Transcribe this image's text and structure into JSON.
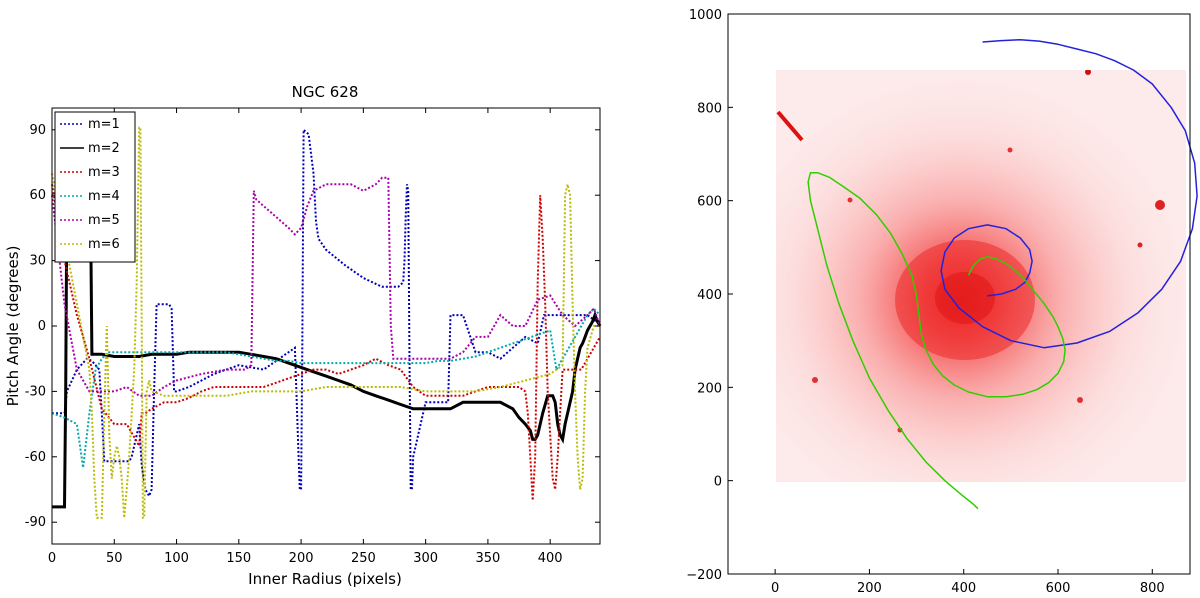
{
  "chart_data": [
    {
      "type": "line",
      "title": "NGC 628",
      "xlabel": "Inner Radius (pixels)",
      "ylabel": "Pitch Angle (degrees)",
      "xlim": [
        0,
        440
      ],
      "ylim": [
        -100,
        100
      ],
      "xticks": [
        "0",
        "50",
        "100",
        "150",
        "200",
        "250",
        "300",
        "350",
        "400"
      ],
      "yticks": [
        "90",
        "60",
        "30",
        "0",
        "-30",
        "-60",
        "-90"
      ],
      "grid": false,
      "legend_position": "top-left",
      "series": [
        {
          "name": "m=1",
          "color": "#0000bb",
          "style": "dotted",
          "x": [
            0,
            10,
            12,
            20,
            28,
            32,
            38,
            40,
            42,
            60,
            62,
            64,
            70,
            72,
            75,
            78,
            80,
            82,
            84,
            88,
            92,
            94,
            96,
            98,
            100,
            110,
            130,
            150,
            170,
            185,
            195,
            198,
            199,
            200,
            201,
            202,
            206,
            210,
            212,
            214,
            220,
            235,
            250,
            265,
            278,
            282,
            283,
            284,
            285,
            286,
            287,
            288,
            289,
            290,
            300,
            310,
            318,
            320,
            325,
            330,
            340,
            350,
            360,
            370,
            380,
            390,
            395,
            400,
            405,
            410,
            415,
            420,
            430,
            437,
            440
          ],
          "y": [
            -40,
            -40,
            -30,
            -20,
            -15,
            -16,
            -20,
            -40,
            -62,
            -62,
            -62,
            -60,
            -45,
            -64,
            -75,
            -78,
            -75,
            -30,
            10,
            10,
            10,
            10,
            8,
            -30,
            -30,
            -28,
            -22,
            -18,
            -20,
            -14,
            -10,
            -60,
            -75,
            -75,
            -10,
            90,
            88,
            70,
            48,
            40,
            35,
            28,
            22,
            18,
            18,
            20,
            30,
            50,
            65,
            62,
            -10,
            -75,
            -75,
            -60,
            -35,
            -35,
            -35,
            5,
            5,
            5,
            -12,
            -12,
            -15,
            -10,
            -5,
            -8,
            5,
            5,
            5,
            5,
            5,
            5,
            5,
            2,
            2
          ]
        },
        {
          "name": "m=2",
          "color": "#000000",
          "style": "solid",
          "x": [
            0,
            10,
            11,
            12,
            14,
            16,
            20,
            24,
            28,
            30,
            31,
            32,
            34,
            40,
            50,
            60,
            70,
            80,
            90,
            100,
            110,
            120,
            130,
            140,
            150,
            160,
            170,
            180,
            190,
            200,
            210,
            220,
            230,
            240,
            250,
            260,
            270,
            280,
            290,
            300,
            310,
            320,
            330,
            340,
            350,
            360,
            370,
            375,
            380,
            384,
            386,
            388,
            390,
            392,
            394,
            398,
            400,
            402,
            404,
            406,
            408,
            410,
            412,
            414,
            416,
            418,
            420,
            422,
            424,
            426,
            428,
            430,
            432,
            434,
            436,
            438,
            440
          ],
          "y": [
            -83,
            -83,
            -30,
            60,
            80,
            60,
            50,
            55,
            60,
            60,
            50,
            -13,
            -13,
            -13,
            -14,
            -14,
            -14,
            -13,
            -13,
            -13,
            -12,
            -12,
            -12,
            -12,
            -12,
            -13,
            -14,
            -15,
            -17,
            -19,
            -21,
            -23,
            -25,
            -27,
            -30,
            -32,
            -34,
            -36,
            -38,
            -38,
            -38,
            -38,
            -35,
            -35,
            -35,
            -35,
            -38,
            -42,
            -45,
            -48,
            -52,
            -52,
            -50,
            -45,
            -40,
            -32,
            -32,
            -32,
            -35,
            -45,
            -50,
            -52,
            -45,
            -40,
            -35,
            -30,
            -20,
            -15,
            -10,
            -8,
            -5,
            -2,
            0,
            2,
            5,
            2,
            0
          ]
        },
        {
          "name": "m=3",
          "color": "#cc0000",
          "style": "dotted",
          "x": [
            0,
            10,
            20,
            30,
            40,
            50,
            60,
            65,
            70,
            72,
            75,
            80,
            90,
            100,
            110,
            120,
            130,
            140,
            150,
            160,
            170,
            180,
            190,
            200,
            210,
            220,
            230,
            240,
            250,
            260,
            270,
            280,
            290,
            300,
            310,
            320,
            330,
            340,
            350,
            360,
            370,
            375,
            380,
            382,
            384,
            386,
            388,
            390,
            392,
            394,
            396,
            398,
            400,
            402,
            404,
            406,
            408,
            410,
            412,
            414,
            416,
            418,
            420,
            425,
            430,
            435,
            440
          ],
          "y": [
            65,
            30,
            5,
            -15,
            -38,
            -45,
            -45,
            -50,
            -55,
            -40,
            -40,
            -38,
            -35,
            -35,
            -33,
            -30,
            -28,
            -28,
            -28,
            -28,
            -28,
            -26,
            -24,
            -22,
            -20,
            -20,
            -22,
            -20,
            -18,
            -15,
            -18,
            -20,
            -28,
            -32,
            -32,
            -32,
            -32,
            -30,
            -28,
            -28,
            -28,
            -28,
            -30,
            -40,
            -60,
            -80,
            -60,
            20,
            60,
            40,
            10,
            -30,
            -50,
            -70,
            -75,
            -60,
            -40,
            -20,
            -20,
            -20,
            -20,
            -20,
            -20,
            -20,
            -15,
            -10,
            -5
          ]
        },
        {
          "name": "m=4",
          "color": "#00aaaa",
          "style": "dotted",
          "x": [
            0,
            10,
            20,
            25,
            30,
            35,
            40,
            45,
            50,
            60,
            70,
            80,
            90,
            100,
            110,
            120,
            130,
            140,
            150,
            160,
            170,
            180,
            190,
            200,
            210,
            220,
            230,
            240,
            250,
            260,
            270,
            280,
            290,
            300,
            310,
            320,
            330,
            340,
            350,
            360,
            370,
            380,
            390,
            400,
            405,
            410,
            415,
            420,
            425,
            430,
            435,
            440
          ],
          "y": [
            -40,
            -42,
            -45,
            -65,
            -40,
            -20,
            -15,
            -12,
            -12,
            -12,
            -12,
            -12,
            -12,
            -12,
            -12,
            -12,
            -12,
            -12,
            -13,
            -14,
            -15,
            -16,
            -16,
            -17,
            -17,
            -17,
            -17,
            -17,
            -17,
            -17,
            -17,
            -17,
            -17,
            -17,
            -16,
            -16,
            -15,
            -14,
            -12,
            -10,
            -8,
            -6,
            -4,
            -2,
            -20,
            -15,
            -10,
            -5,
            0,
            5,
            8,
            5
          ]
        },
        {
          "name": "m=5",
          "color": "#aa00aa",
          "style": "dotted",
          "x": [
            0,
            10,
            20,
            30,
            40,
            50,
            60,
            70,
            80,
            90,
            100,
            120,
            140,
            150,
            155,
            160,
            162,
            164,
            170,
            180,
            190,
            195,
            200,
            205,
            210,
            220,
            230,
            240,
            250,
            260,
            265,
            270,
            272,
            274,
            280,
            290,
            300,
            310,
            320,
            330,
            340,
            350,
            360,
            370,
            380,
            390,
            400,
            410,
            420,
            430,
            435,
            440
          ],
          "y": [
            60,
            10,
            -20,
            -30,
            -30,
            -30,
            -28,
            -32,
            -32,
            -28,
            -25,
            -22,
            -20,
            -20,
            -20,
            -18,
            62,
            58,
            55,
            50,
            45,
            42,
            45,
            55,
            62,
            65,
            65,
            65,
            62,
            65,
            68,
            68,
            0,
            -15,
            -15,
            -15,
            -15,
            -15,
            -15,
            -12,
            -5,
            -5,
            5,
            0,
            0,
            12,
            14,
            5,
            0,
            5,
            8,
            0
          ]
        },
        {
          "name": "m=6",
          "color": "#bbbb00",
          "style": "dotted",
          "x": [
            0,
            10,
            20,
            30,
            32,
            34,
            36,
            38,
            40,
            42,
            44,
            46,
            48,
            50,
            52,
            54,
            56,
            58,
            60,
            62,
            64,
            66,
            68,
            70,
            71,
            72,
            73,
            74,
            75,
            76,
            78,
            80,
            90,
            100,
            120,
            140,
            160,
            180,
            200,
            220,
            240,
            260,
            280,
            300,
            320,
            340,
            360,
            380,
            400,
            405,
            410,
            412,
            414,
            416,
            418,
            420,
            422,
            424,
            426,
            428,
            430,
            435,
            440
          ],
          "y": [
            70,
            40,
            10,
            -20,
            -40,
            -70,
            -88,
            -88,
            -88,
            -40,
            0,
            -50,
            -70,
            -60,
            -55,
            -60,
            -70,
            -88,
            -75,
            -60,
            -40,
            -20,
            20,
            91,
            91,
            0,
            -88,
            -88,
            -60,
            -30,
            -25,
            -30,
            -32,
            -32,
            -32,
            -32,
            -30,
            -30,
            -30,
            -28,
            -28,
            -28,
            -28,
            -30,
            -30,
            -30,
            -28,
            -25,
            -22,
            -20,
            -18,
            60,
            65,
            60,
            10,
            -30,
            -60,
            -75,
            -70,
            -30,
            -10,
            0,
            0
          ]
        }
      ]
    },
    {
      "type": "line",
      "title": "",
      "xlim": [
        -100,
        880
      ],
      "ylim": [
        -200,
        1000
      ],
      "xticks": [
        "0",
        "200",
        "400",
        "600",
        "800"
      ],
      "yticks": [
        "1000",
        "800",
        "600",
        "400",
        "200",
        "0",
        "−200"
      ],
      "background_image": "NGC 628 galaxy (red colormap)",
      "series": [
        {
          "name": "",
          "color": "#2222dd",
          "style": "solid",
          "x": [
            450,
            480,
            510,
            530,
            540,
            545,
            540,
            520,
            490,
            450,
            410,
            380,
            360,
            352,
            360,
            390,
            440,
            500,
            570,
            640,
            710,
            770,
            820,
            860,
            885,
            895,
            890,
            870,
            840,
            800,
            760,
            720,
            680,
            640,
            600,
            560,
            520,
            480,
            440
          ],
          "y": [
            396,
            400,
            410,
            425,
            445,
            470,
            495,
            520,
            540,
            548,
            540,
            520,
            490,
            450,
            410,
            370,
            330,
            300,
            285,
            295,
            320,
            360,
            410,
            470,
            540,
            610,
            680,
            750,
            800,
            850,
            880,
            900,
            915,
            925,
            935,
            942,
            945,
            943,
            940
          ]
        },
        {
          "name": "",
          "color": "#33cc00",
          "style": "solid",
          "x": [
            410,
            420,
            435,
            450,
            470,
            490,
            510,
            530,
            550,
            570,
            590,
            600,
            610,
            615,
            612,
            600,
            580,
            555,
            525,
            490,
            450,
            410,
            380,
            355,
            335,
            320,
            310,
            305,
            300,
            290,
            270,
            245,
            215,
            180,
            145,
            115,
            90,
            75,
            70,
            75,
            90,
            110,
            135,
            165,
            200,
            240,
            280,
            320,
            360,
            395,
            420,
            430
          ],
          "y": [
            440,
            460,
            475,
            480,
            475,
            465,
            450,
            430,
            405,
            380,
            350,
            330,
            305,
            280,
            255,
            230,
            210,
            195,
            185,
            180,
            180,
            190,
            205,
            225,
            250,
            280,
            315,
            355,
            395,
            440,
            485,
            530,
            570,
            605,
            630,
            650,
            660,
            660,
            640,
            600,
            540,
            460,
            380,
            300,
            220,
            150,
            90,
            40,
            0,
            -30,
            -50,
            -60
          ]
        }
      ]
    }
  ]
}
